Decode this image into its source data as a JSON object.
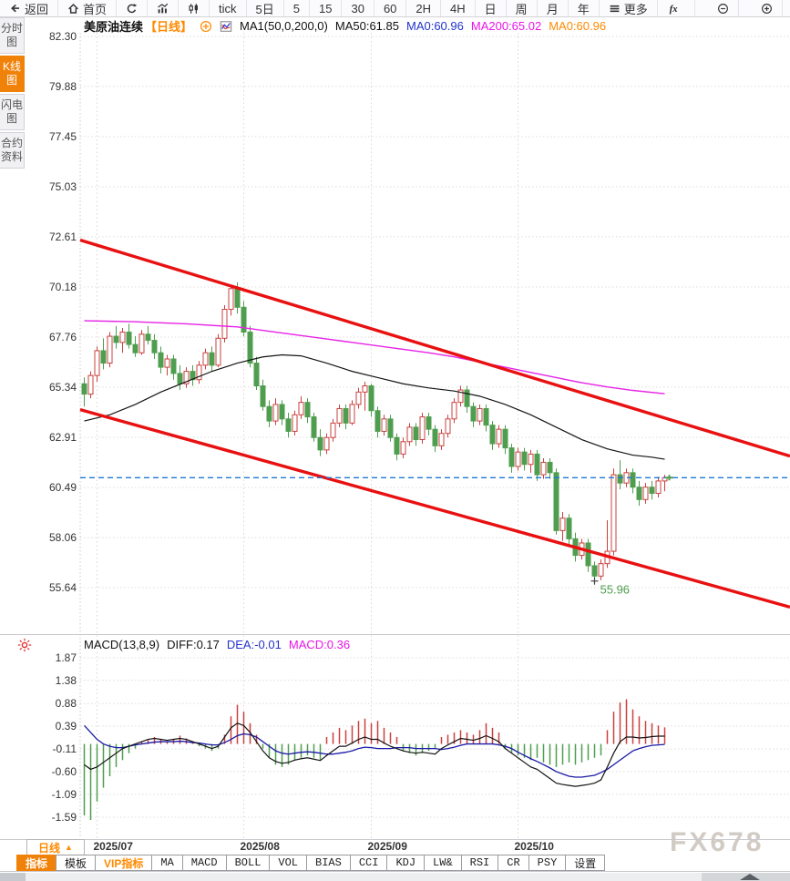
{
  "toolbar": {
    "items": [
      {
        "name": "back",
        "label": "返回",
        "icon": "back-icon"
      },
      {
        "name": "home",
        "label": "首页",
        "icon": "home-icon"
      },
      {
        "name": "refresh",
        "label": "",
        "icon": "refresh-icon"
      },
      {
        "name": "bar-chart",
        "label": "",
        "icon": "line-chart-icon"
      },
      {
        "name": "candlestick",
        "label": "",
        "icon": "candlestick-icon"
      },
      {
        "name": "tick",
        "label": "tick"
      },
      {
        "name": "5-day",
        "label": "5日"
      },
      {
        "name": "5-min",
        "label": "5"
      },
      {
        "name": "15-min",
        "label": "15"
      },
      {
        "name": "30-min",
        "label": "30"
      },
      {
        "name": "60-min",
        "label": "60"
      },
      {
        "name": "2-hour",
        "label": "2H"
      },
      {
        "name": "4-hour",
        "label": "4H"
      },
      {
        "name": "day",
        "label": "日"
      },
      {
        "name": "week",
        "label": "周"
      },
      {
        "name": "month",
        "label": "月"
      },
      {
        "name": "year",
        "label": "年"
      },
      {
        "name": "more",
        "label": "更多",
        "icon": "menu-icon"
      },
      {
        "name": "fx",
        "label": "",
        "icon": "fx-icon"
      },
      {
        "name": "zoom-out",
        "label": "",
        "icon": "zoom-out-icon",
        "gap": true
      },
      {
        "name": "zoom-in",
        "label": "",
        "icon": "zoom-in-icon",
        "gap": true
      }
    ]
  },
  "sidebar": {
    "items": [
      {
        "name": "time-chart",
        "label": "分时图",
        "active": false
      },
      {
        "name": "kline-chart",
        "label": "K线图",
        "active": true
      },
      {
        "name": "lightning-chart",
        "label": "闪电图",
        "active": false
      },
      {
        "name": "contract-info",
        "label": "合约资料",
        "active": false
      }
    ]
  },
  "chart_header": {
    "symbol": "美原油连续",
    "period": "【日线】",
    "ma_settings": "MA1(50,0,200,0)",
    "ma50": "MA50:61.85",
    "ma0_blue": "MA0:60.96",
    "ma200": "MA200:65.02",
    "ma0_orange": "MA0:60.96"
  },
  "macd_header": {
    "title": "MACD(13,8,9)",
    "diff": "DIFF:0.17",
    "dea": "DEA:-0.01",
    "macd": "MACD:0.36"
  },
  "bottom": {
    "period_button": "日线",
    "period_arrow": "▲",
    "watermark": "FX678",
    "tabs": [
      {
        "name": "indicator",
        "label": "指标",
        "state": "active",
        "mono": false
      },
      {
        "name": "template",
        "label": "模板",
        "state": "normal",
        "mono": false
      },
      {
        "name": "vip-indicator",
        "label": "VIP指标",
        "state": "vip",
        "mono": false
      },
      {
        "name": "ma",
        "label": "MA",
        "state": "normal",
        "mono": true
      },
      {
        "name": "macd",
        "label": "MACD",
        "state": "normal",
        "mono": true
      },
      {
        "name": "boll",
        "label": "BOLL",
        "state": "normal",
        "mono": true
      },
      {
        "name": "vol",
        "label": "VOL",
        "state": "normal",
        "mono": true
      },
      {
        "name": "bias",
        "label": "BIAS",
        "state": "normal",
        "mono": true
      },
      {
        "name": "cci",
        "label": "CCI",
        "state": "normal",
        "mono": true
      },
      {
        "name": "kdj",
        "label": "KDJ",
        "state": "normal",
        "mono": true
      },
      {
        "name": "lw",
        "label": "LW&",
        "state": "normal",
        "mono": true
      },
      {
        "name": "rsi",
        "label": "RSI",
        "state": "normal",
        "mono": true
      },
      {
        "name": "cr",
        "label": "CR",
        "state": "normal",
        "mono": true
      },
      {
        "name": "psy",
        "label": "PSY",
        "state": "normal",
        "mono": true
      },
      {
        "name": "settings",
        "label": "设置",
        "state": "normal",
        "mono": false
      }
    ]
  },
  "colors": {
    "accent": "#f0820a",
    "up": "#c9413f",
    "down": "#4f9e4f",
    "channel": "#e81010",
    "ma50": "#141414",
    "ma200": "#e623e6",
    "dashed_price": "#1e78d2",
    "diff": "#141414",
    "dea": "#1a1aa6",
    "grid": "#dcdcdc",
    "vgrid": "#e8cfcf"
  },
  "chart_data": {
    "type": "candlestick",
    "title": "美原油连续【日线】 with MACD(13,8,9)",
    "x_labels": [
      {
        "label": "2025/07",
        "index": 2
      },
      {
        "label": "2025/08",
        "index": 25
      },
      {
        "label": "2025/09",
        "index": 45
      },
      {
        "label": "2025/10",
        "index": 68
      }
    ],
    "main_panel": {
      "y_ticks": [
        82.3,
        79.88,
        77.45,
        75.03,
        72.61,
        70.18,
        67.76,
        65.34,
        62.91,
        60.49,
        58.06,
        55.64
      ],
      "last_price": 60.96,
      "low_marker": {
        "index": 80,
        "price": 55.96,
        "label": "55.96"
      },
      "channel_upper": {
        "price_at_left": 72.45,
        "price_at_right": 62.0
      },
      "channel_lower": {
        "price_at_left": 64.25,
        "price_at_right": 54.7
      },
      "ma50_points": [
        [
          0,
          63.7
        ],
        [
          4,
          64.0
        ],
        [
          8,
          64.5
        ],
        [
          12,
          65.1
        ],
        [
          16,
          65.6
        ],
        [
          20,
          66.1
        ],
        [
          24,
          66.5
        ],
        [
          28,
          66.8
        ],
        [
          31,
          66.9
        ],
        [
          34,
          66.85
        ],
        [
          38,
          66.5
        ],
        [
          42,
          66.1
        ],
        [
          46,
          65.8
        ],
        [
          50,
          65.5
        ],
        [
          54,
          65.3
        ],
        [
          58,
          65.15
        ],
        [
          62,
          64.9
        ],
        [
          66,
          64.5
        ],
        [
          70,
          64.0
        ],
        [
          74,
          63.4
        ],
        [
          78,
          62.8
        ],
        [
          82,
          62.35
        ],
        [
          86,
          62.05
        ],
        [
          89,
          61.95
        ],
        [
          91,
          61.85
        ]
      ],
      "ma200_points": [
        [
          0,
          68.55
        ],
        [
          8,
          68.5
        ],
        [
          16,
          68.4
        ],
        [
          24,
          68.25
        ],
        [
          30,
          68.0
        ],
        [
          36,
          67.75
        ],
        [
          42,
          67.5
        ],
        [
          48,
          67.25
        ],
        [
          54,
          67.0
        ],
        [
          58,
          66.8
        ],
        [
          62,
          66.55
        ],
        [
          66,
          66.3
        ],
        [
          70,
          66.05
        ],
        [
          74,
          65.8
        ],
        [
          78,
          65.55
        ],
        [
          82,
          65.35
        ],
        [
          86,
          65.18
        ],
        [
          91,
          65.02
        ]
      ],
      "candles": [
        [
          65.5,
          65.8,
          64.4,
          65.0
        ],
        [
          65.0,
          66.1,
          64.8,
          65.9
        ],
        [
          65.9,
          67.3,
          65.6,
          67.1
        ],
        [
          67.1,
          67.7,
          66.2,
          66.5
        ],
        [
          66.5,
          68.0,
          66.3,
          67.8
        ],
        [
          67.8,
          68.3,
          67.2,
          67.5
        ],
        [
          67.5,
          68.2,
          67.0,
          68.0
        ],
        [
          68.0,
          68.4,
          67.2,
          67.4
        ],
        [
          67.4,
          67.8,
          66.8,
          67.0
        ],
        [
          67.0,
          68.1,
          66.9,
          67.9
        ],
        [
          67.9,
          68.3,
          67.4,
          67.6
        ],
        [
          67.6,
          67.9,
          66.7,
          67.0
        ],
        [
          67.0,
          67.3,
          66.0,
          66.3
        ],
        [
          66.3,
          66.9,
          65.9,
          66.7
        ],
        [
          66.7,
          66.9,
          65.7,
          66.0
        ],
        [
          66.0,
          66.4,
          65.2,
          65.5
        ],
        [
          65.5,
          66.3,
          65.3,
          66.1
        ],
        [
          66.1,
          66.4,
          65.4,
          65.7
        ],
        [
          65.7,
          66.6,
          65.5,
          66.4
        ],
        [
          66.4,
          67.2,
          66.2,
          67.0
        ],
        [
          67.0,
          67.3,
          66.1,
          66.4
        ],
        [
          66.4,
          67.9,
          66.3,
          67.7
        ],
        [
          67.7,
          69.3,
          67.5,
          69.1
        ],
        [
          69.1,
          70.3,
          68.8,
          70.1
        ],
        [
          70.1,
          70.4,
          68.9,
          69.2
        ],
        [
          69.2,
          69.5,
          67.8,
          68.0
        ],
        [
          68.0,
          68.3,
          66.3,
          66.5
        ],
        [
          66.5,
          66.8,
          65.2,
          65.4
        ],
        [
          65.4,
          65.7,
          64.2,
          64.4
        ],
        [
          64.4,
          64.7,
          63.4,
          63.7
        ],
        [
          63.7,
          64.8,
          63.5,
          64.5
        ],
        [
          64.5,
          64.7,
          63.5,
          63.8
        ],
        [
          63.8,
          64.1,
          62.9,
          63.2
        ],
        [
          63.2,
          64.2,
          63.0,
          64.0
        ],
        [
          64.0,
          64.9,
          63.8,
          64.6
        ],
        [
          64.6,
          64.8,
          63.6,
          63.9
        ],
        [
          63.9,
          64.1,
          62.7,
          62.9
        ],
        [
          62.9,
          63.3,
          62.0,
          62.3
        ],
        [
          62.3,
          63.1,
          62.1,
          62.9
        ],
        [
          62.9,
          63.8,
          62.7,
          63.6
        ],
        [
          63.6,
          64.5,
          63.4,
          64.3
        ],
        [
          64.3,
          64.5,
          63.3,
          63.6
        ],
        [
          63.6,
          64.7,
          63.5,
          64.5
        ],
        [
          64.5,
          65.3,
          64.3,
          65.1
        ],
        [
          65.1,
          65.6,
          64.2,
          65.4
        ],
        [
          65.4,
          65.5,
          63.9,
          64.2
        ],
        [
          64.2,
          64.4,
          62.9,
          63.2
        ],
        [
          63.2,
          64.0,
          63.0,
          63.8
        ],
        [
          63.8,
          64.0,
          62.7,
          62.9
        ],
        [
          62.9,
          63.1,
          61.8,
          62.1
        ],
        [
          62.1,
          62.9,
          61.9,
          62.7
        ],
        [
          62.7,
          63.6,
          62.5,
          63.4
        ],
        [
          63.4,
          63.6,
          62.5,
          62.8
        ],
        [
          62.8,
          64.1,
          62.6,
          63.9
        ],
        [
          63.9,
          64.1,
          63.0,
          63.3
        ],
        [
          63.3,
          63.5,
          62.2,
          62.5
        ],
        [
          62.5,
          63.3,
          62.3,
          63.1
        ],
        [
          63.1,
          64.0,
          62.9,
          63.8
        ],
        [
          63.8,
          64.8,
          63.6,
          64.6
        ],
        [
          64.6,
          65.4,
          64.4,
          65.2
        ],
        [
          65.2,
          65.4,
          64.1,
          64.4
        ],
        [
          64.4,
          64.6,
          63.4,
          63.7
        ],
        [
          63.7,
          64.5,
          63.5,
          64.3
        ],
        [
          64.3,
          64.5,
          63.2,
          63.5
        ],
        [
          63.5,
          63.7,
          62.3,
          62.6
        ],
        [
          62.6,
          63.5,
          62.4,
          63.3
        ],
        [
          63.3,
          63.5,
          62.1,
          62.4
        ],
        [
          62.4,
          62.6,
          61.2,
          61.5
        ],
        [
          61.5,
          62.4,
          61.3,
          62.2
        ],
        [
          62.2,
          62.4,
          61.3,
          61.6
        ],
        [
          61.6,
          62.3,
          61.2,
          62.1
        ],
        [
          62.1,
          62.3,
          60.8,
          61.1
        ],
        [
          61.1,
          61.9,
          60.9,
          61.7
        ],
        [
          61.7,
          61.9,
          60.9,
          61.2
        ],
        [
          61.2,
          61.4,
          58.2,
          58.4
        ],
        [
          58.4,
          59.3,
          57.9,
          59.0
        ],
        [
          59.0,
          59.2,
          57.7,
          58.0
        ],
        [
          58.0,
          58.3,
          56.9,
          57.2
        ],
        [
          57.2,
          58.0,
          57.0,
          57.8
        ],
        [
          57.8,
          58.0,
          56.4,
          56.7
        ],
        [
          56.7,
          56.9,
          55.96,
          56.2
        ],
        [
          56.2,
          57.0,
          56.0,
          56.8
        ],
        [
          56.8,
          58.9,
          56.6,
          57.4
        ],
        [
          57.4,
          61.4,
          57.2,
          61.1
        ],
        [
          61.1,
          61.8,
          60.4,
          60.7
        ],
        [
          60.7,
          61.4,
          60.5,
          61.2
        ],
        [
          61.2,
          61.4,
          60.2,
          60.5
        ],
        [
          60.5,
          60.8,
          59.6,
          59.9
        ],
        [
          59.9,
          60.7,
          59.7,
          60.5
        ],
        [
          60.5,
          60.8,
          59.9,
          60.2
        ],
        [
          60.2,
          61.0,
          60.0,
          60.8
        ],
        [
          60.8,
          61.1,
          60.3,
          60.96
        ]
      ]
    },
    "macd_panel": {
      "y_ticks": [
        1.87,
        1.38,
        0.88,
        0.39,
        -0.11,
        -0.6,
        -1.09,
        -1.59
      ],
      "hist": [
        -1.55,
        -1.65,
        -1.25,
        -0.95,
        -0.7,
        -0.5,
        -0.35,
        -0.2,
        -0.1,
        0.05,
        0.1,
        0.15,
        0.1,
        0.05,
        0.1,
        0.18,
        0.12,
        0.06,
        -0.05,
        -0.1,
        -0.15,
        -0.1,
        0.2,
        0.6,
        0.85,
        0.7,
        0.45,
        0.2,
        -0.1,
        -0.3,
        -0.45,
        -0.5,
        -0.45,
        -0.35,
        -0.3,
        -0.25,
        -0.3,
        -0.35,
        0.15,
        0.25,
        0.35,
        0.3,
        0.4,
        0.5,
        0.55,
        0.45,
        0.5,
        0.35,
        0.25,
        0.15,
        -0.15,
        -0.2,
        -0.25,
        -0.2,
        -0.15,
        -0.1,
        0.15,
        0.2,
        0.25,
        0.3,
        0.25,
        0.2,
        0.3,
        0.45,
        0.35,
        0.25,
        -0.1,
        -0.2,
        -0.25,
        -0.3,
        -0.35,
        -0.3,
        -0.4,
        -0.45,
        -0.5,
        -0.45,
        -0.4,
        -0.45,
        -0.4,
        -0.35,
        -0.3,
        -0.25,
        0.3,
        0.7,
        0.9,
        0.97,
        0.75,
        0.6,
        0.5,
        0.45,
        0.4,
        0.36
      ],
      "diff": [
        -0.45,
        -0.55,
        -0.5,
        -0.4,
        -0.3,
        -0.2,
        -0.1,
        -0.05,
        0.0,
        0.05,
        0.1,
        0.12,
        0.1,
        0.08,
        0.1,
        0.12,
        0.1,
        0.05,
        0.0,
        -0.05,
        -0.1,
        -0.05,
        0.15,
        0.35,
        0.45,
        0.4,
        0.25,
        0.05,
        -0.15,
        -0.3,
        -0.38,
        -0.42,
        -0.4,
        -0.35,
        -0.32,
        -0.3,
        -0.33,
        -0.36,
        -0.25,
        -0.15,
        -0.05,
        -0.05,
        0.02,
        0.1,
        0.15,
        0.1,
        0.1,
        0.02,
        -0.05,
        -0.1,
        -0.15,
        -0.18,
        -0.2,
        -0.18,
        -0.2,
        -0.22,
        -0.1,
        -0.02,
        0.05,
        0.12,
        0.1,
        0.08,
        0.12,
        0.18,
        0.12,
        0.05,
        -0.1,
        -0.2,
        -0.3,
        -0.4,
        -0.5,
        -0.55,
        -0.65,
        -0.75,
        -0.85,
        -0.88,
        -0.9,
        -0.92,
        -0.9,
        -0.88,
        -0.85,
        -0.78,
        -0.5,
        -0.2,
        0.05,
        0.15,
        0.15,
        0.13,
        0.14,
        0.16,
        0.17,
        0.17
      ],
      "dea": [
        0.4,
        0.25,
        0.1,
        0.0,
        -0.05,
        -0.08,
        -0.08,
        -0.05,
        -0.02,
        0.0,
        0.02,
        0.04,
        0.05,
        0.05,
        0.05,
        0.06,
        0.05,
        0.03,
        0.02,
        0.0,
        -0.02,
        -0.02,
        0.03,
        0.1,
        0.18,
        0.22,
        0.2,
        0.15,
        0.05,
        -0.05,
        -0.15,
        -0.2,
        -0.22,
        -0.2,
        -0.18,
        -0.17,
        -0.18,
        -0.2,
        -0.22,
        -0.22,
        -0.2,
        -0.18,
        -0.15,
        -0.1,
        -0.07,
        -0.08,
        -0.1,
        -0.1,
        -0.1,
        -0.08,
        -0.08,
        -0.08,
        -0.1,
        -0.1,
        -0.1,
        -0.1,
        -0.12,
        -0.1,
        -0.07,
        -0.03,
        0.0,
        0.0,
        0.0,
        0.0,
        0.0,
        -0.02,
        -0.05,
        -0.1,
        -0.18,
        -0.25,
        -0.32,
        -0.38,
        -0.45,
        -0.52,
        -0.6,
        -0.65,
        -0.7,
        -0.72,
        -0.72,
        -0.7,
        -0.68,
        -0.62,
        -0.55,
        -0.45,
        -0.35,
        -0.25,
        -0.15,
        -0.1,
        -0.06,
        -0.03,
        -0.02,
        -0.01
      ]
    }
  }
}
